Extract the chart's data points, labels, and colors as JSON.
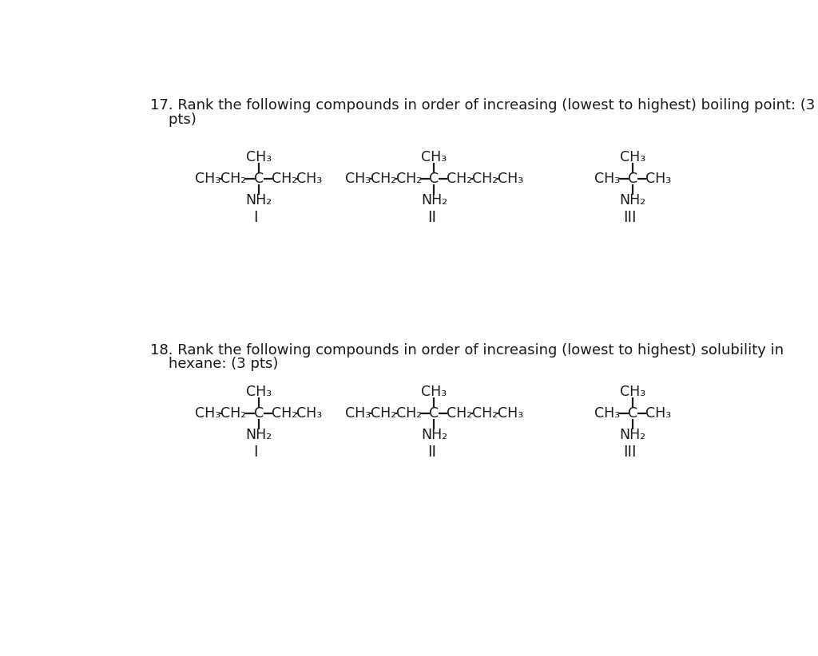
{
  "background_color": "#ffffff",
  "text_color": "#1a1a1a",
  "q17_line1": "17. Rank the following compounds in order of increasing (lowest to highest) boiling point: (3",
  "q17_line2": "    pts)",
  "q18_line1": "18. Rank the following compounds in order of increasing (lowest to highest) solubility in",
  "q18_line2": "    hexane: (3 pts)",
  "font_size": 13.0,
  "chem_font_size": 12.5
}
